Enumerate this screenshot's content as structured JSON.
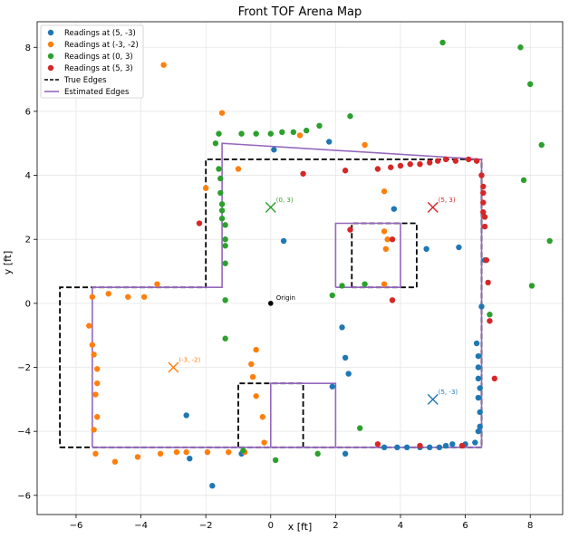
{
  "chart_data": {
    "type": "scatter",
    "title": "Front TOF Arena Map",
    "xlabel": "x [ft]",
    "ylabel": "y [ft]",
    "xlim": [
      -7.2,
      9.0
    ],
    "ylim": [
      -6.6,
      8.8
    ],
    "xticks": [
      -6,
      -4,
      -2,
      0,
      2,
      4,
      6,
      8
    ],
    "yticks": [
      -6,
      -4,
      -2,
      0,
      2,
      4,
      6,
      8
    ],
    "grid": true,
    "legend_position": "upper-left",
    "series": [
      {
        "name": "Readings at (5, -3)",
        "color": "#1f77b4",
        "points": [
          [
            0.1,
            4.8
          ],
          [
            1.8,
            5.05
          ],
          [
            3.8,
            2.95
          ],
          [
            4.8,
            1.7
          ],
          [
            5.8,
            1.75
          ],
          [
            0.4,
            1.95
          ],
          [
            2.2,
            -0.75
          ],
          [
            2.3,
            -1.7
          ],
          [
            2.4,
            -2.2
          ],
          [
            1.9,
            -2.6
          ],
          [
            -2.6,
            -3.5
          ],
          [
            -2.5,
            -4.85
          ],
          [
            -1.8,
            -5.7
          ],
          [
            2.3,
            -4.7
          ],
          [
            3.5,
            -4.5
          ],
          [
            3.9,
            -4.5
          ],
          [
            4.2,
            -4.5
          ],
          [
            4.6,
            -4.5
          ],
          [
            4.9,
            -4.5
          ],
          [
            5.2,
            -4.5
          ],
          [
            5.4,
            -4.45
          ],
          [
            5.6,
            -4.4
          ],
          [
            6.0,
            -4.4
          ],
          [
            6.3,
            -4.35
          ],
          [
            6.4,
            -4.0
          ],
          [
            6.45,
            -3.85
          ],
          [
            6.45,
            -3.4
          ],
          [
            6.4,
            -2.95
          ],
          [
            6.45,
            -2.65
          ],
          [
            6.4,
            -2.35
          ],
          [
            6.4,
            -2.0
          ],
          [
            6.4,
            -1.65
          ],
          [
            6.35,
            -1.25
          ],
          [
            6.5,
            -0.1
          ],
          [
            6.6,
            1.35
          ],
          [
            -0.9,
            -4.7
          ]
        ]
      },
      {
        "name": "Readings at (-3, -2)",
        "color": "#ff7f0e",
        "points": [
          [
            -3.3,
            7.45
          ],
          [
            -1.5,
            5.95
          ],
          [
            0.9,
            5.25
          ],
          [
            2.9,
            4.95
          ],
          [
            -1.0,
            4.2
          ],
          [
            3.5,
            3.5
          ],
          [
            -2.0,
            3.6
          ],
          [
            -3.5,
            0.6
          ],
          [
            -5.5,
            0.2
          ],
          [
            -5.0,
            0.3
          ],
          [
            -4.4,
            0.2
          ],
          [
            -3.9,
            0.2
          ],
          [
            -5.6,
            -0.7
          ],
          [
            -5.5,
            -1.3
          ],
          [
            -5.45,
            -1.6
          ],
          [
            -5.35,
            -2.05
          ],
          [
            -5.35,
            -2.5
          ],
          [
            -5.4,
            -2.85
          ],
          [
            -5.35,
            -3.55
          ],
          [
            -5.45,
            -3.95
          ],
          [
            -5.4,
            -4.7
          ],
          [
            -4.8,
            -4.95
          ],
          [
            -4.1,
            -4.8
          ],
          [
            -3.4,
            -4.7
          ],
          [
            -2.9,
            -4.65
          ],
          [
            -2.6,
            -4.65
          ],
          [
            -1.95,
            -4.65
          ],
          [
            -1.3,
            -4.65
          ],
          [
            -0.8,
            -4.65
          ],
          [
            -0.45,
            -1.45
          ],
          [
            -0.6,
            -1.9
          ],
          [
            -0.55,
            -2.3
          ],
          [
            -0.45,
            -2.9
          ],
          [
            -0.25,
            -3.55
          ],
          [
            -0.2,
            -4.35
          ],
          [
            3.6,
            2.0
          ],
          [
            3.5,
            2.25
          ],
          [
            3.55,
            1.7
          ],
          [
            3.5,
            0.6
          ]
        ]
      },
      {
        "name": "Readings at (0, 3)",
        "color": "#2ca02c",
        "points": [
          [
            5.3,
            8.15
          ],
          [
            7.7,
            8.0
          ],
          [
            8.0,
            6.85
          ],
          [
            8.35,
            4.95
          ],
          [
            7.8,
            3.85
          ],
          [
            8.6,
            1.95
          ],
          [
            8.05,
            0.55
          ],
          [
            6.75,
            -0.35
          ],
          [
            1.5,
            5.55
          ],
          [
            1.1,
            5.4
          ],
          [
            2.45,
            5.85
          ],
          [
            0.7,
            5.35
          ],
          [
            0.35,
            5.35
          ],
          [
            0.0,
            5.3
          ],
          [
            -0.45,
            5.3
          ],
          [
            -0.9,
            5.3
          ],
          [
            -1.6,
            5.3
          ],
          [
            -1.7,
            5.0
          ],
          [
            -1.6,
            4.2
          ],
          [
            -1.55,
            3.9
          ],
          [
            -1.55,
            3.45
          ],
          [
            -1.5,
            3.1
          ],
          [
            -1.5,
            2.9
          ],
          [
            -1.5,
            2.65
          ],
          [
            -1.4,
            2.45
          ],
          [
            -1.4,
            2.0
          ],
          [
            -1.4,
            1.8
          ],
          [
            -1.4,
            1.25
          ],
          [
            -1.4,
            0.1
          ],
          [
            -1.4,
            -1.1
          ],
          [
            -0.85,
            -4.6
          ],
          [
            0.15,
            -4.9
          ],
          [
            1.45,
            -4.7
          ],
          [
            2.75,
            -3.9
          ],
          [
            1.9,
            0.25
          ],
          [
            2.2,
            0.55
          ],
          [
            2.9,
            0.6
          ]
        ]
      },
      {
        "name": "Readings at (5, 3)",
        "color": "#d62728",
        "points": [
          [
            1.0,
            4.05
          ],
          [
            2.3,
            4.15
          ],
          [
            3.3,
            4.2
          ],
          [
            3.7,
            4.25
          ],
          [
            4.0,
            4.3
          ],
          [
            4.3,
            4.35
          ],
          [
            4.6,
            4.35
          ],
          [
            4.9,
            4.4
          ],
          [
            5.15,
            4.45
          ],
          [
            5.4,
            4.5
          ],
          [
            5.7,
            4.45
          ],
          [
            6.1,
            4.5
          ],
          [
            6.35,
            4.45
          ],
          [
            6.5,
            4.0
          ],
          [
            6.55,
            3.65
          ],
          [
            6.55,
            3.45
          ],
          [
            6.55,
            3.15
          ],
          [
            6.55,
            2.85
          ],
          [
            6.6,
            2.7
          ],
          [
            6.6,
            2.4
          ],
          [
            6.65,
            1.35
          ],
          [
            6.7,
            0.65
          ],
          [
            6.75,
            -0.55
          ],
          [
            6.9,
            -2.35
          ],
          [
            2.45,
            2.3
          ],
          [
            3.75,
            2.0
          ],
          [
            3.75,
            0.1
          ],
          [
            -2.2,
            2.5
          ],
          [
            3.3,
            -4.4
          ],
          [
            4.6,
            -4.45
          ],
          [
            5.9,
            -4.45
          ]
        ]
      }
    ],
    "lines": [
      {
        "name": "True Edges",
        "color": "#000000",
        "style": "dashed",
        "paths": [
          [
            [
              -6.5,
              -4.5
            ],
            [
              6.5,
              -4.5
            ],
            [
              6.5,
              4.5
            ],
            [
              -2.0,
              4.5
            ],
            [
              -2.0,
              0.5
            ],
            [
              -6.5,
              0.5
            ],
            [
              -6.5,
              -4.5
            ]
          ],
          [
            [
              -1.0,
              -4.5
            ],
            [
              -1.0,
              -2.5
            ],
            [
              1.0,
              -2.5
            ],
            [
              1.0,
              -4.5
            ]
          ],
          [
            [
              2.5,
              0.5
            ],
            [
              2.5,
              2.5
            ],
            [
              4.5,
              2.5
            ],
            [
              4.5,
              0.5
            ],
            [
              2.5,
              0.5
            ]
          ]
        ]
      },
      {
        "name": "Estimated Edges",
        "color": "#9467bd",
        "style": "solid",
        "paths": [
          [
            [
              -5.5,
              -4.5
            ],
            [
              6.5,
              -4.5
            ],
            [
              6.5,
              4.5
            ],
            [
              -1.5,
              5.0
            ],
            [
              -1.5,
              0.5
            ],
            [
              -5.5,
              0.5
            ],
            [
              -5.5,
              -4.5
            ]
          ],
          [
            [
              0.0,
              -4.5
            ],
            [
              0.0,
              -2.5
            ],
            [
              2.0,
              -2.5
            ],
            [
              2.0,
              -4.5
            ]
          ],
          [
            [
              2.0,
              0.5
            ],
            [
              2.0,
              2.5
            ],
            [
              4.0,
              2.5
            ],
            [
              4.0,
              0.5
            ],
            [
              2.0,
              0.5
            ]
          ]
        ]
      }
    ],
    "markers": [
      {
        "type": "dot",
        "x": 0,
        "y": 0,
        "color": "#000000",
        "label": "Origin"
      },
      {
        "type": "x",
        "x": 0,
        "y": 3,
        "color": "#2ca02c",
        "label": "(0, 3)"
      },
      {
        "type": "x",
        "x": 5,
        "y": 3,
        "color": "#d62728",
        "label": "(5, 3)"
      },
      {
        "type": "x",
        "x": -3,
        "y": -2,
        "color": "#ff7f0e",
        "label": "(-3, -2)"
      },
      {
        "type": "x",
        "x": 5,
        "y": -3,
        "color": "#1f77b4",
        "label": "(5, -3)"
      }
    ],
    "legend": [
      {
        "label": "Readings at (5, -3)",
        "kind": "point",
        "color": "#1f77b4"
      },
      {
        "label": "Readings at (-3, -2)",
        "kind": "point",
        "color": "#ff7f0e"
      },
      {
        "label": "Readings at (0, 3)",
        "kind": "point",
        "color": "#2ca02c"
      },
      {
        "label": "Readings at (5, 3)",
        "kind": "point",
        "color": "#d62728"
      },
      {
        "label": "True Edges",
        "kind": "dashed-line",
        "color": "#000000"
      },
      {
        "label": "Estimated Edges",
        "kind": "line",
        "color": "#9467bd"
      }
    ]
  }
}
